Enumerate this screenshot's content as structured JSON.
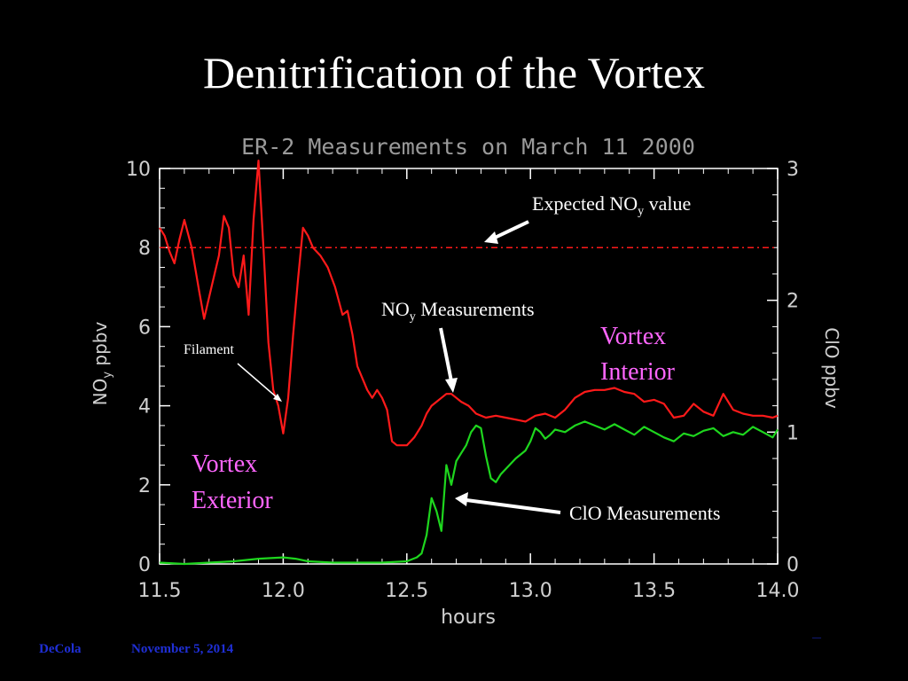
{
  "slide": {
    "title": "Denitrification of the Vortex",
    "footer_author": "DeCola",
    "footer_date": "November 5, 2014",
    "footer_page": "—"
  },
  "colors": {
    "background": "#000000",
    "axes": "#ffffff",
    "noy": "#ff1a1a",
    "clo": "#1ed61e",
    "vortex_label": "#ff66ff",
    "footer": "#1f2fd6"
  },
  "chart_data": {
    "type": "line",
    "title": "ER-2 Measurements on March 11 2000",
    "xlabel": "hours",
    "ylabel_left": "NOy ppbv",
    "ylabel_right": "ClO ppbv",
    "xlim": [
      11.5,
      14.0
    ],
    "ylim_left": [
      0,
      10
    ],
    "ylim_right": [
      0,
      3
    ],
    "xticks": [
      "11.5",
      "12.0",
      "12.5",
      "13.0",
      "13.5",
      "14.0"
    ],
    "yticks_left": [
      "0",
      "2",
      "4",
      "6",
      "8",
      "10"
    ],
    "yticks_right": [
      "0",
      "1",
      "2",
      "3"
    ],
    "expected_noy": 8.0,
    "series": [
      {
        "name": "NOy Measurements",
        "axis": "left",
        "x": [
          11.5,
          11.52,
          11.54,
          11.56,
          11.58,
          11.6,
          11.63,
          11.66,
          11.68,
          11.71,
          11.74,
          11.76,
          11.78,
          11.8,
          11.82,
          11.84,
          11.86,
          11.88,
          11.9,
          11.92,
          11.94,
          11.96,
          11.98,
          12.0,
          12.02,
          12.04,
          12.06,
          12.08,
          12.1,
          12.12,
          12.15,
          12.18,
          12.21,
          12.24,
          12.26,
          12.28,
          12.3,
          12.32,
          12.34,
          12.36,
          12.38,
          12.4,
          12.42,
          12.44,
          12.46,
          12.48,
          12.5,
          12.53,
          12.56,
          12.58,
          12.6,
          12.62,
          12.64,
          12.66,
          12.68,
          12.7,
          12.72,
          12.75,
          12.78,
          12.82,
          12.86,
          12.9,
          12.94,
          12.98,
          13.02,
          13.06,
          13.1,
          13.14,
          13.18,
          13.22,
          13.26,
          13.3,
          13.34,
          13.38,
          13.42,
          13.46,
          13.5,
          13.54,
          13.58,
          13.62,
          13.66,
          13.7,
          13.74,
          13.78,
          13.82,
          13.86,
          13.9,
          13.94,
          13.98,
          14.0
        ],
        "values": [
          8.5,
          8.3,
          7.9,
          7.6,
          8.2,
          8.7,
          8.0,
          6.9,
          6.2,
          7.0,
          7.8,
          8.8,
          8.5,
          7.3,
          7.0,
          7.8,
          6.3,
          8.7,
          10.2,
          8.0,
          5.6,
          4.4,
          4.0,
          3.3,
          4.2,
          5.8,
          7.2,
          8.5,
          8.3,
          8.0,
          7.8,
          7.5,
          7.0,
          6.3,
          6.4,
          5.8,
          5.0,
          4.7,
          4.4,
          4.2,
          4.4,
          4.2,
          3.9,
          3.1,
          3.0,
          3.0,
          3.0,
          3.2,
          3.5,
          3.8,
          4.0,
          4.1,
          4.2,
          4.3,
          4.3,
          4.2,
          4.1,
          4.0,
          3.8,
          3.7,
          3.75,
          3.7,
          3.65,
          3.6,
          3.75,
          3.8,
          3.7,
          3.9,
          4.2,
          4.35,
          4.4,
          4.4,
          4.45,
          4.35,
          4.3,
          4.1,
          4.15,
          4.05,
          3.7,
          3.75,
          4.05,
          3.85,
          3.75,
          4.3,
          3.9,
          3.8,
          3.75,
          3.75,
          3.7,
          3.75
        ]
      },
      {
        "name": "ClO Measurements",
        "axis": "right",
        "x": [
          11.5,
          11.6,
          11.7,
          11.8,
          11.9,
          12.0,
          12.05,
          12.1,
          12.2,
          12.3,
          12.4,
          12.5,
          12.54,
          12.56,
          12.58,
          12.6,
          12.62,
          12.64,
          12.66,
          12.68,
          12.7,
          12.72,
          12.74,
          12.76,
          12.78,
          12.8,
          12.82,
          12.84,
          12.86,
          12.88,
          12.9,
          12.94,
          12.98,
          13.0,
          13.02,
          13.04,
          13.06,
          13.08,
          13.1,
          13.14,
          13.18,
          13.22,
          13.26,
          13.3,
          13.34,
          13.38,
          13.42,
          13.46,
          13.5,
          13.54,
          13.58,
          13.62,
          13.66,
          13.7,
          13.74,
          13.78,
          13.82,
          13.86,
          13.9,
          13.94,
          13.98,
          14.0
        ],
        "values": [
          0.01,
          0.0,
          0.01,
          0.02,
          0.04,
          0.05,
          0.04,
          0.02,
          0.01,
          0.01,
          0.01,
          0.02,
          0.05,
          0.08,
          0.22,
          0.5,
          0.4,
          0.25,
          0.75,
          0.6,
          0.78,
          0.84,
          0.9,
          1.0,
          1.05,
          1.03,
          0.82,
          0.65,
          0.62,
          0.68,
          0.72,
          0.8,
          0.86,
          0.93,
          1.03,
          1.0,
          0.95,
          0.98,
          1.02,
          1.0,
          1.05,
          1.08,
          1.05,
          1.02,
          1.06,
          1.02,
          0.98,
          1.04,
          1.0,
          0.96,
          0.93,
          0.99,
          0.97,
          1.01,
          1.03,
          0.97,
          1.0,
          0.98,
          1.04,
          1.0,
          0.96,
          1.02
        ]
      }
    ],
    "annotations": {
      "expected": "Expected NOy value",
      "noy": "NOy Measurements",
      "clo": "ClO Measurements",
      "filament": "Filament",
      "interior_1": "Vortex",
      "interior_2": "Interior",
      "exterior_1": "Vortex",
      "exterior_2": "Exterior"
    }
  }
}
